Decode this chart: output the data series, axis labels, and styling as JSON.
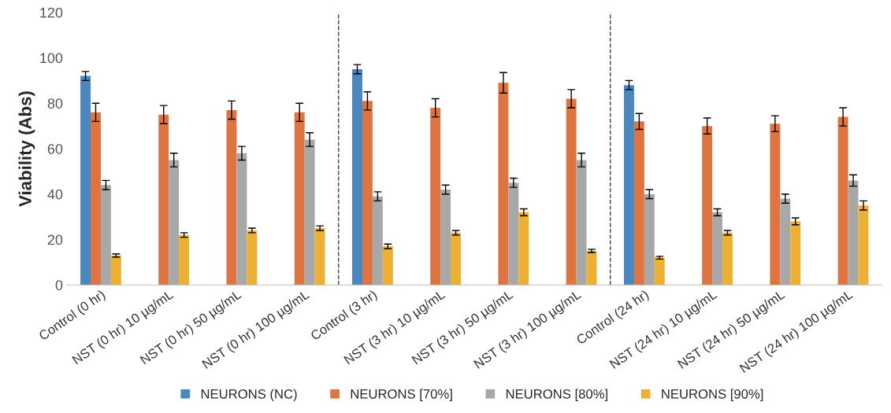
{
  "chart_data": {
    "type": "bar",
    "ylabel": "Viability (Abs)",
    "categories": [
      "Control (0 hr)",
      "NST (0 hr) 10 µg/mL",
      "NST (0 hr) 50 µg/mL",
      "NST (0 hr) 100 µg/mL",
      "Control (3 hr)",
      "NST (3 hr) 10 µg/mL",
      "NST (3 hr) 50 µg/mL",
      "NST (3 hr) 100 µg/mL",
      "Control (24 hr)",
      "NST (24 hr) 10 µg/mL",
      "NST (24 hr) 50 µg/mL",
      "NST (24 hr) 100 µg/mL"
    ],
    "series": [
      {
        "name": "NEURONS (NC)",
        "color": "#4a86c0",
        "values": [
          92,
          null,
          null,
          null,
          95,
          null,
          null,
          null,
          88,
          null,
          null,
          null
        ],
        "errors": [
          2,
          null,
          null,
          null,
          2,
          null,
          null,
          null,
          2,
          null,
          null,
          null
        ]
      },
      {
        "name": "NEURONS [70%]",
        "color": "#dd7441",
        "values": [
          76,
          75,
          77,
          76,
          81,
          78,
          89,
          82,
          72,
          70,
          71,
          74
        ],
        "errors": [
          4,
          4,
          4,
          4,
          4,
          4,
          4.5,
          4,
          3.5,
          3.5,
          3.5,
          4
        ]
      },
      {
        "name": "NEURONS [80%]",
        "color": "#a8a8a8",
        "values": [
          44,
          55,
          58,
          64,
          39,
          42,
          45,
          55,
          40,
          32,
          38,
          46
        ],
        "errors": [
          2,
          3,
          3,
          3,
          2,
          2,
          2,
          3,
          2,
          1.5,
          2,
          2.5
        ]
      },
      {
        "name": "NEURONS [90%]",
        "color": "#ecb035",
        "values": [
          13,
          22,
          24,
          25,
          17,
          23,
          32,
          15,
          12,
          23,
          28,
          35
        ],
        "errors": [
          0.7,
          1,
          1,
          1,
          1,
          1,
          1.5,
          0.7,
          0.6,
          1,
          1.5,
          2
        ]
      }
    ],
    "ylim": [
      0,
      120
    ],
    "yticks": [
      0,
      20,
      40,
      60,
      80,
      100,
      120
    ],
    "grid": false,
    "legend": "bottom"
  }
}
